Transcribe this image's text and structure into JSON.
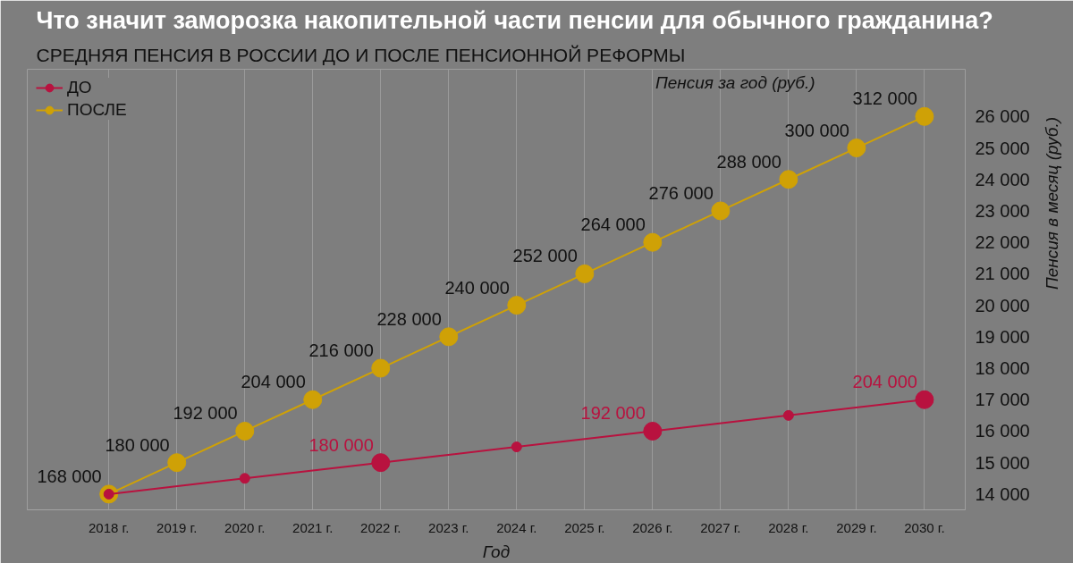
{
  "chart_data": {
    "type": "line",
    "title": "Что значит заморозка накопительной части пенсии для обычного гражданина?",
    "subtitle": "СРЕДНЯЯ ПЕНСИЯ В РОССИИ ДО И ПОСЛЕ ПЕНСИОННОЙ РЕФОРМЫ",
    "xlabel": "Год",
    "ylabel": "Пенсия за год (руб.)",
    "y2label": "Пенсия в месяц (руб.)",
    "x": [
      2018,
      2019,
      2020,
      2021,
      2022,
      2023,
      2024,
      2025,
      2026,
      2027,
      2028,
      2029,
      2030
    ],
    "xlim": [
      2016.8,
      2030.6
    ],
    "xticks": [
      {
        "value": 2018,
        "label": "2018 г."
      },
      {
        "value": 2019,
        "label": "2019 г."
      },
      {
        "value": 2020,
        "label": "2020 г."
      },
      {
        "value": 2021,
        "label": "2021 г."
      },
      {
        "value": 2022,
        "label": "2022 г."
      },
      {
        "value": 2023,
        "label": "2023 г."
      },
      {
        "value": 2024,
        "label": "2024 г."
      },
      {
        "value": 2025,
        "label": "2025 г."
      },
      {
        "value": 2026,
        "label": "2026 г."
      },
      {
        "value": 2027,
        "label": "2027 г."
      },
      {
        "value": 2028,
        "label": "2028 г."
      },
      {
        "value": 2029,
        "label": "2029 г."
      },
      {
        "value": 2030,
        "label": "2030 г."
      }
    ],
    "ylim": [
      162000,
      330000
    ],
    "y2lim": [
      13500,
      27500
    ],
    "y2ticks": [
      {
        "value": 14000,
        "label": "14 000"
      },
      {
        "value": 15000,
        "label": "15 000"
      },
      {
        "value": 16000,
        "label": "16 000"
      },
      {
        "value": 17000,
        "label": "17 000"
      },
      {
        "value": 18000,
        "label": "18 000"
      },
      {
        "value": 19000,
        "label": "19 000"
      },
      {
        "value": 20000,
        "label": "20 000"
      },
      {
        "value": 21000,
        "label": "21 000"
      },
      {
        "value": 22000,
        "label": "22 000"
      },
      {
        "value": 23000,
        "label": "23 000"
      },
      {
        "value": 24000,
        "label": "24 000"
      },
      {
        "value": 25000,
        "label": "25 000"
      },
      {
        "value": 26000,
        "label": "26 000"
      }
    ],
    "series": [
      {
        "name": "ДО",
        "color": "#b8123f",
        "x": [
          2018,
          2020,
          2022,
          2024,
          2026,
          2028,
          2030
        ],
        "values": [
          168000,
          174000,
          180000,
          186000,
          192000,
          198000,
          204000
        ],
        "value_labels": [
          null,
          null,
          "180 000",
          null,
          "192 000",
          null,
          "204 000"
        ]
      },
      {
        "name": "ПОСЛЕ",
        "color": "#cfa106",
        "values": [
          168000,
          180000,
          192000,
          204000,
          216000,
          228000,
          240000,
          252000,
          264000,
          276000,
          288000,
          300000,
          312000
        ],
        "value_labels": [
          "168 000",
          "180 000",
          "192 000",
          "204 000",
          "216 000",
          "228 000",
          "240 000",
          "252 000",
          "264 000",
          "276 000",
          "288 000",
          "300 000",
          "312 000"
        ]
      }
    ],
    "marker": "circle",
    "line_style": "solid",
    "grid": "x",
    "legend": "top left"
  }
}
